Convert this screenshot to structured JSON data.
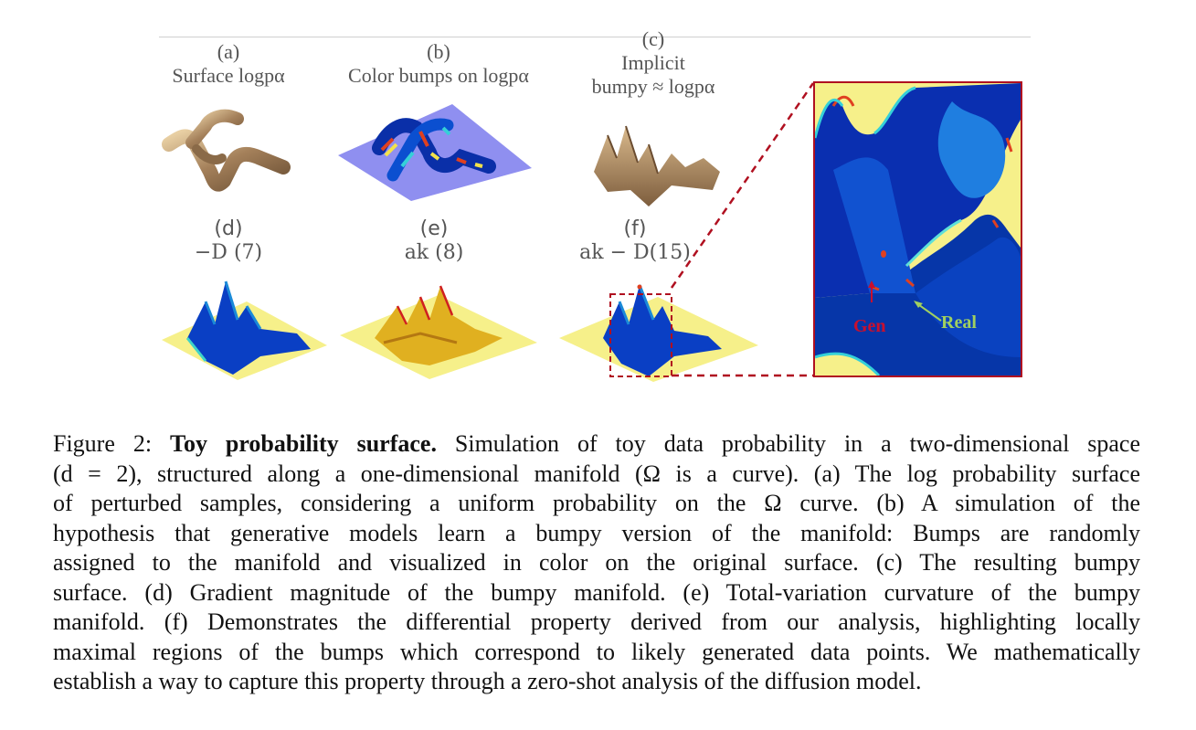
{
  "figure": {
    "panels": [
      {
        "id": "a",
        "letter": "(a)",
        "label": "Surface logpα"
      },
      {
        "id": "b",
        "letter": "(b)",
        "label": "Color bumps on  logpα"
      },
      {
        "id": "c",
        "letter": "(c)",
        "label_line1": "Implicit",
        "label_line2": "bumpy ≈ logpα"
      },
      {
        "id": "d",
        "letter": "(d)",
        "label": "−D (7)"
      },
      {
        "id": "e",
        "letter": "(e)",
        "label": "ak (8)"
      },
      {
        "id": "f",
        "letter": "(f)",
        "label": "ak − D(15)"
      }
    ],
    "zoom_annotations": {
      "gen": "Gen",
      "real": "Real"
    },
    "colors": {
      "rule": "#cfcfcf",
      "zoom_border": "#b01020",
      "gen": "#c8102e",
      "real": "#a0d060"
    }
  },
  "caption": {
    "prefix": "Figure 2: ",
    "title": "Toy probability surface.",
    "lines": [
      " Simulation of toy data probability in a two-dimensional space",
      "(d = 2), structured along a one-dimensional manifold (Ω is a curve). (a) The log probability surface",
      "of perturbed samples, considering a uniform probability on the Ω curve.  (b) A simulation of the",
      "hypothesis that generative models learn a bumpy version of the manifold: Bumps are randomly",
      "assigned to the manifold and visualized in color on the original surface. (c) The resulting bumpy",
      "surface. (d) Gradient magnitude of the bumpy manifold. (e) Total-variation curvature of the bumpy",
      "manifold. (f) Demonstrates the differential property derived from our analysis, highlighting locally",
      "maximal regions of the bumps which correspond to likely generated data points. We mathematically",
      "establish a way to capture this property through a zero-shot analysis of the diffusion model."
    ]
  }
}
